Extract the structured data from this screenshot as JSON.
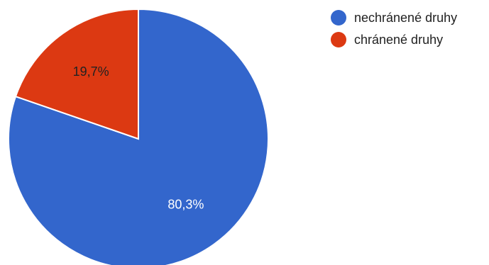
{
  "chart_data": {
    "type": "pie",
    "slices": [
      {
        "name": "nechránené druhy",
        "value": 80.3,
        "label": "80,3%",
        "color": "#3366cc",
        "label_color": "#ffffff"
      },
      {
        "name": "chránené druhy",
        "value": 19.7,
        "label": "19,7%",
        "color": "#dc3912",
        "label_color": "#222222"
      }
    ],
    "start": "12 o'clock",
    "direction": "clockwise",
    "legend_position": "top-right"
  }
}
